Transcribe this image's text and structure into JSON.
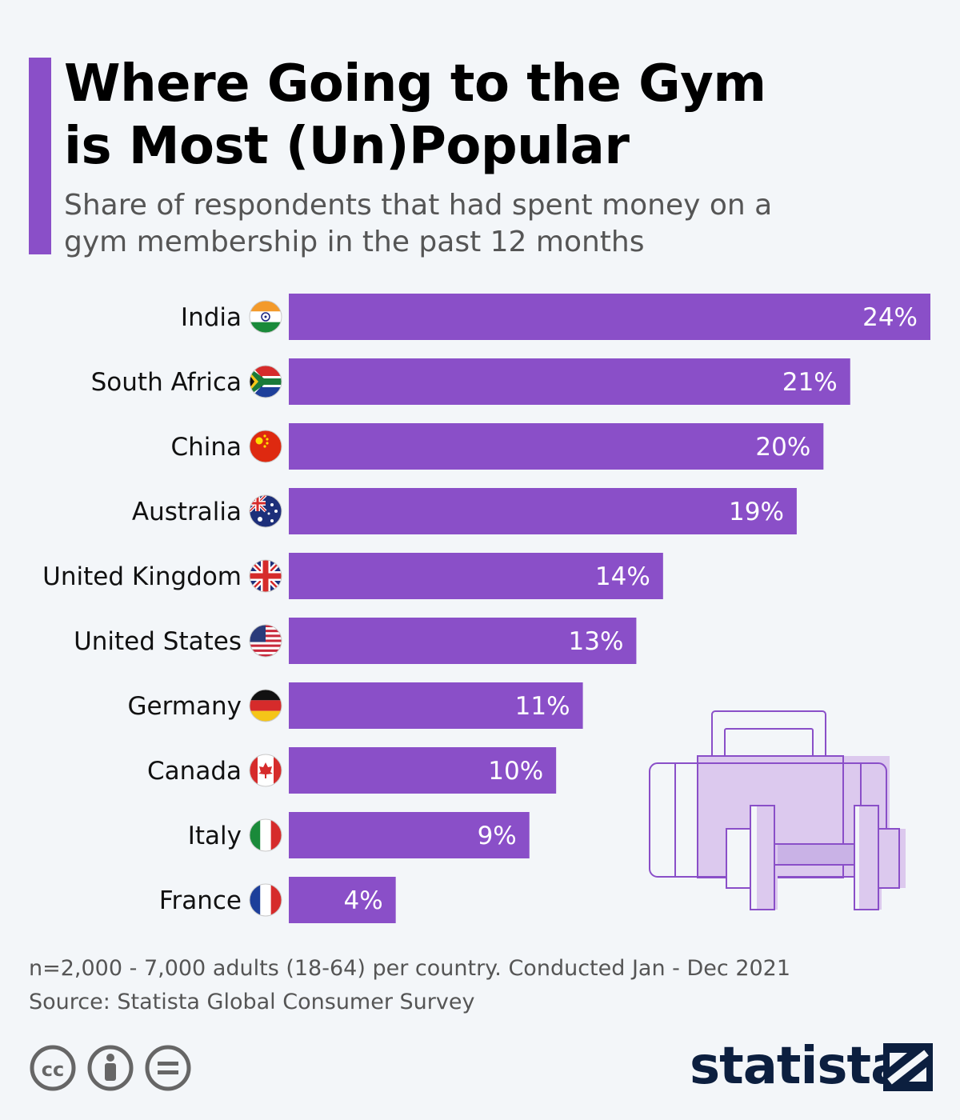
{
  "header": {
    "title_line1": "Where Going to the Gym",
    "title_line2": "is Most (Un)Popular",
    "subtitle_line1": "Share of respondents that had spent money on a",
    "subtitle_line2": "gym membership in the past 12 months"
  },
  "colors": {
    "accent": "#8a4fc8",
    "bar": "#8a4fc8",
    "bar_label": "#ffffff",
    "brand": "#0c1f3f"
  },
  "chart_data": {
    "type": "bar",
    "orientation": "horizontal",
    "title": "Where Going to the Gym is Most (Un)Popular",
    "subtitle": "Share of respondents that had spent money on a gym membership in the past 12 months",
    "categories": [
      "India",
      "South Africa",
      "China",
      "Australia",
      "United Kingdom",
      "United States",
      "Germany",
      "Canada",
      "Italy",
      "France"
    ],
    "values": [
      24,
      21,
      20,
      19,
      14,
      13,
      11,
      10,
      9,
      4
    ],
    "value_labels": [
      "24%",
      "21%",
      "20%",
      "19%",
      "14%",
      "13%",
      "11%",
      "10%",
      "9%",
      "4%"
    ],
    "flags": [
      "india-flag-icon",
      "south-africa-flag-icon",
      "china-flag-icon",
      "australia-flag-icon",
      "united-kingdom-flag-icon",
      "united-states-flag-icon",
      "germany-flag-icon",
      "canada-flag-icon",
      "italy-flag-icon",
      "france-flag-icon"
    ],
    "unit": "%",
    "xlim": [
      0,
      24
    ],
    "grid": false,
    "legend": "none"
  },
  "footer": {
    "note": "n=2,000 - 7,000 adults (18-64) per country. Conducted Jan - Dec 2021",
    "source": "Source: Statista Global Consumer Survey",
    "brand": "statista",
    "cc_icons": [
      "cc-icon",
      "attribution-icon",
      "no-derivatives-icon"
    ]
  },
  "decoration": {
    "illustration": "gym-bag-dumbbell-icon"
  }
}
